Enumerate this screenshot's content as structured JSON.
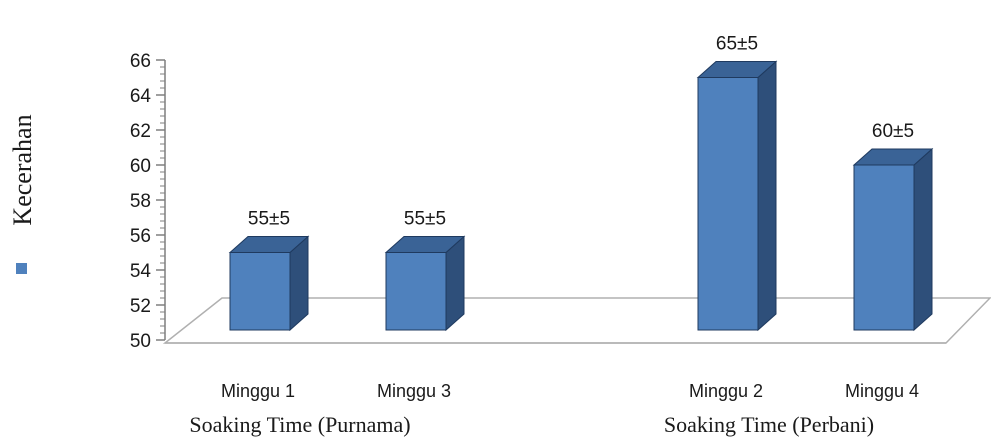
{
  "chart_data": {
    "type": "bar",
    "categories": [
      "Minggu 1",
      "Minggu 3",
      "Minggu 2",
      "Minggu 4"
    ],
    "groups": [
      {
        "title": "Soaking Time (Purnama)",
        "categories": [
          "Minggu 1",
          "Minggu 3"
        ]
      },
      {
        "title": "Soaking Time (Perbani)",
        "categories": [
          "Minggu 2",
          "Minggu 4"
        ]
      }
    ],
    "series": [
      {
        "name": "Kecerahan",
        "values": [
          55,
          55,
          65,
          60
        ]
      }
    ],
    "data_labels": [
      "55±5",
      "55±5",
      "65±5",
      "60±5"
    ],
    "ylim": [
      50,
      66
    ],
    "yticks": [
      "50",
      "52",
      "54",
      "56",
      "58",
      "60",
      "62",
      "64",
      "66"
    ],
    "grid": false,
    "legend_position": "left",
    "colors": {
      "bar_front": "#4f81bd",
      "bar_side": "#2e4f7a",
      "bar_top": "#3a6396",
      "bar_edge": "#1f3a5f",
      "floor": "#ffffff",
      "floor_edge": "#b0b0b0",
      "axis": "#7f7f7f"
    }
  }
}
